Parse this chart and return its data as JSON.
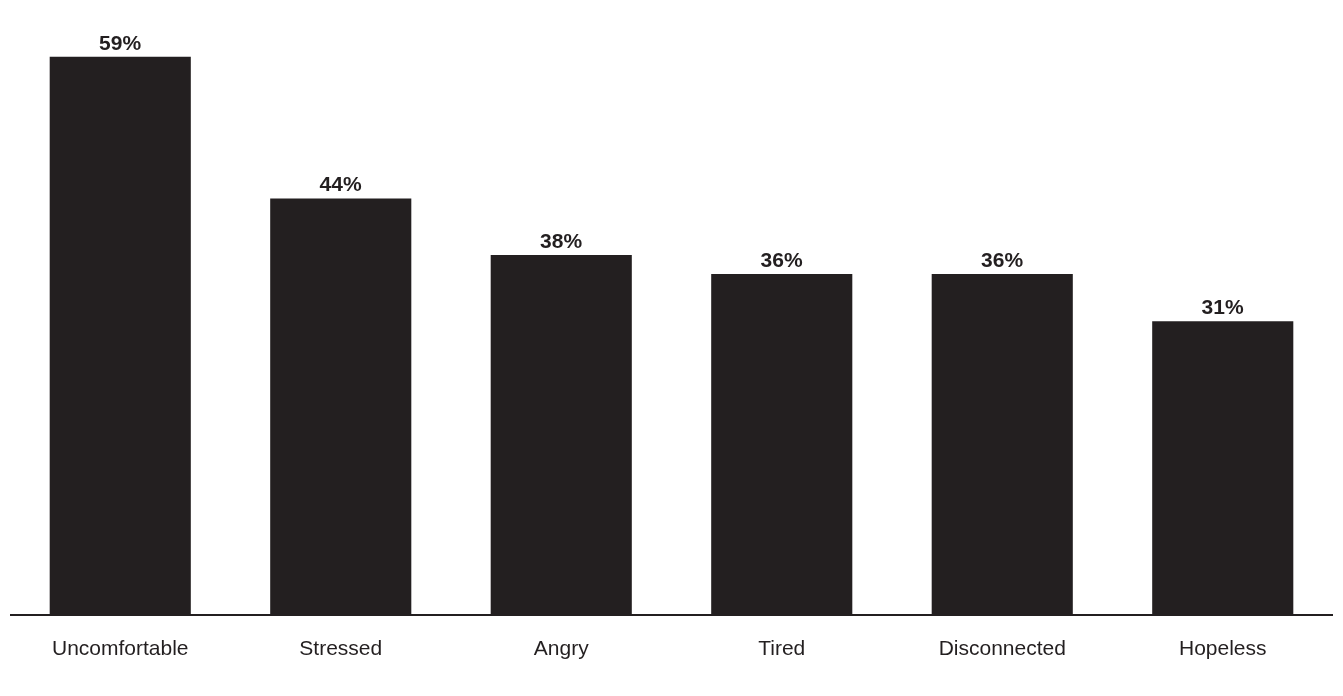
{
  "chart_data": {
    "type": "bar",
    "categories": [
      "Uncomfortable",
      "Stressed",
      "Angry",
      "Tired",
      "Disconnected",
      "Hopeless"
    ],
    "values": [
      59,
      44,
      38,
      36,
      36,
      31
    ],
    "value_labels": [
      "59%",
      "44%",
      "38%",
      "36%",
      "36%",
      "31%"
    ],
    "color": "#231f20",
    "grid": false,
    "legend": false
  }
}
